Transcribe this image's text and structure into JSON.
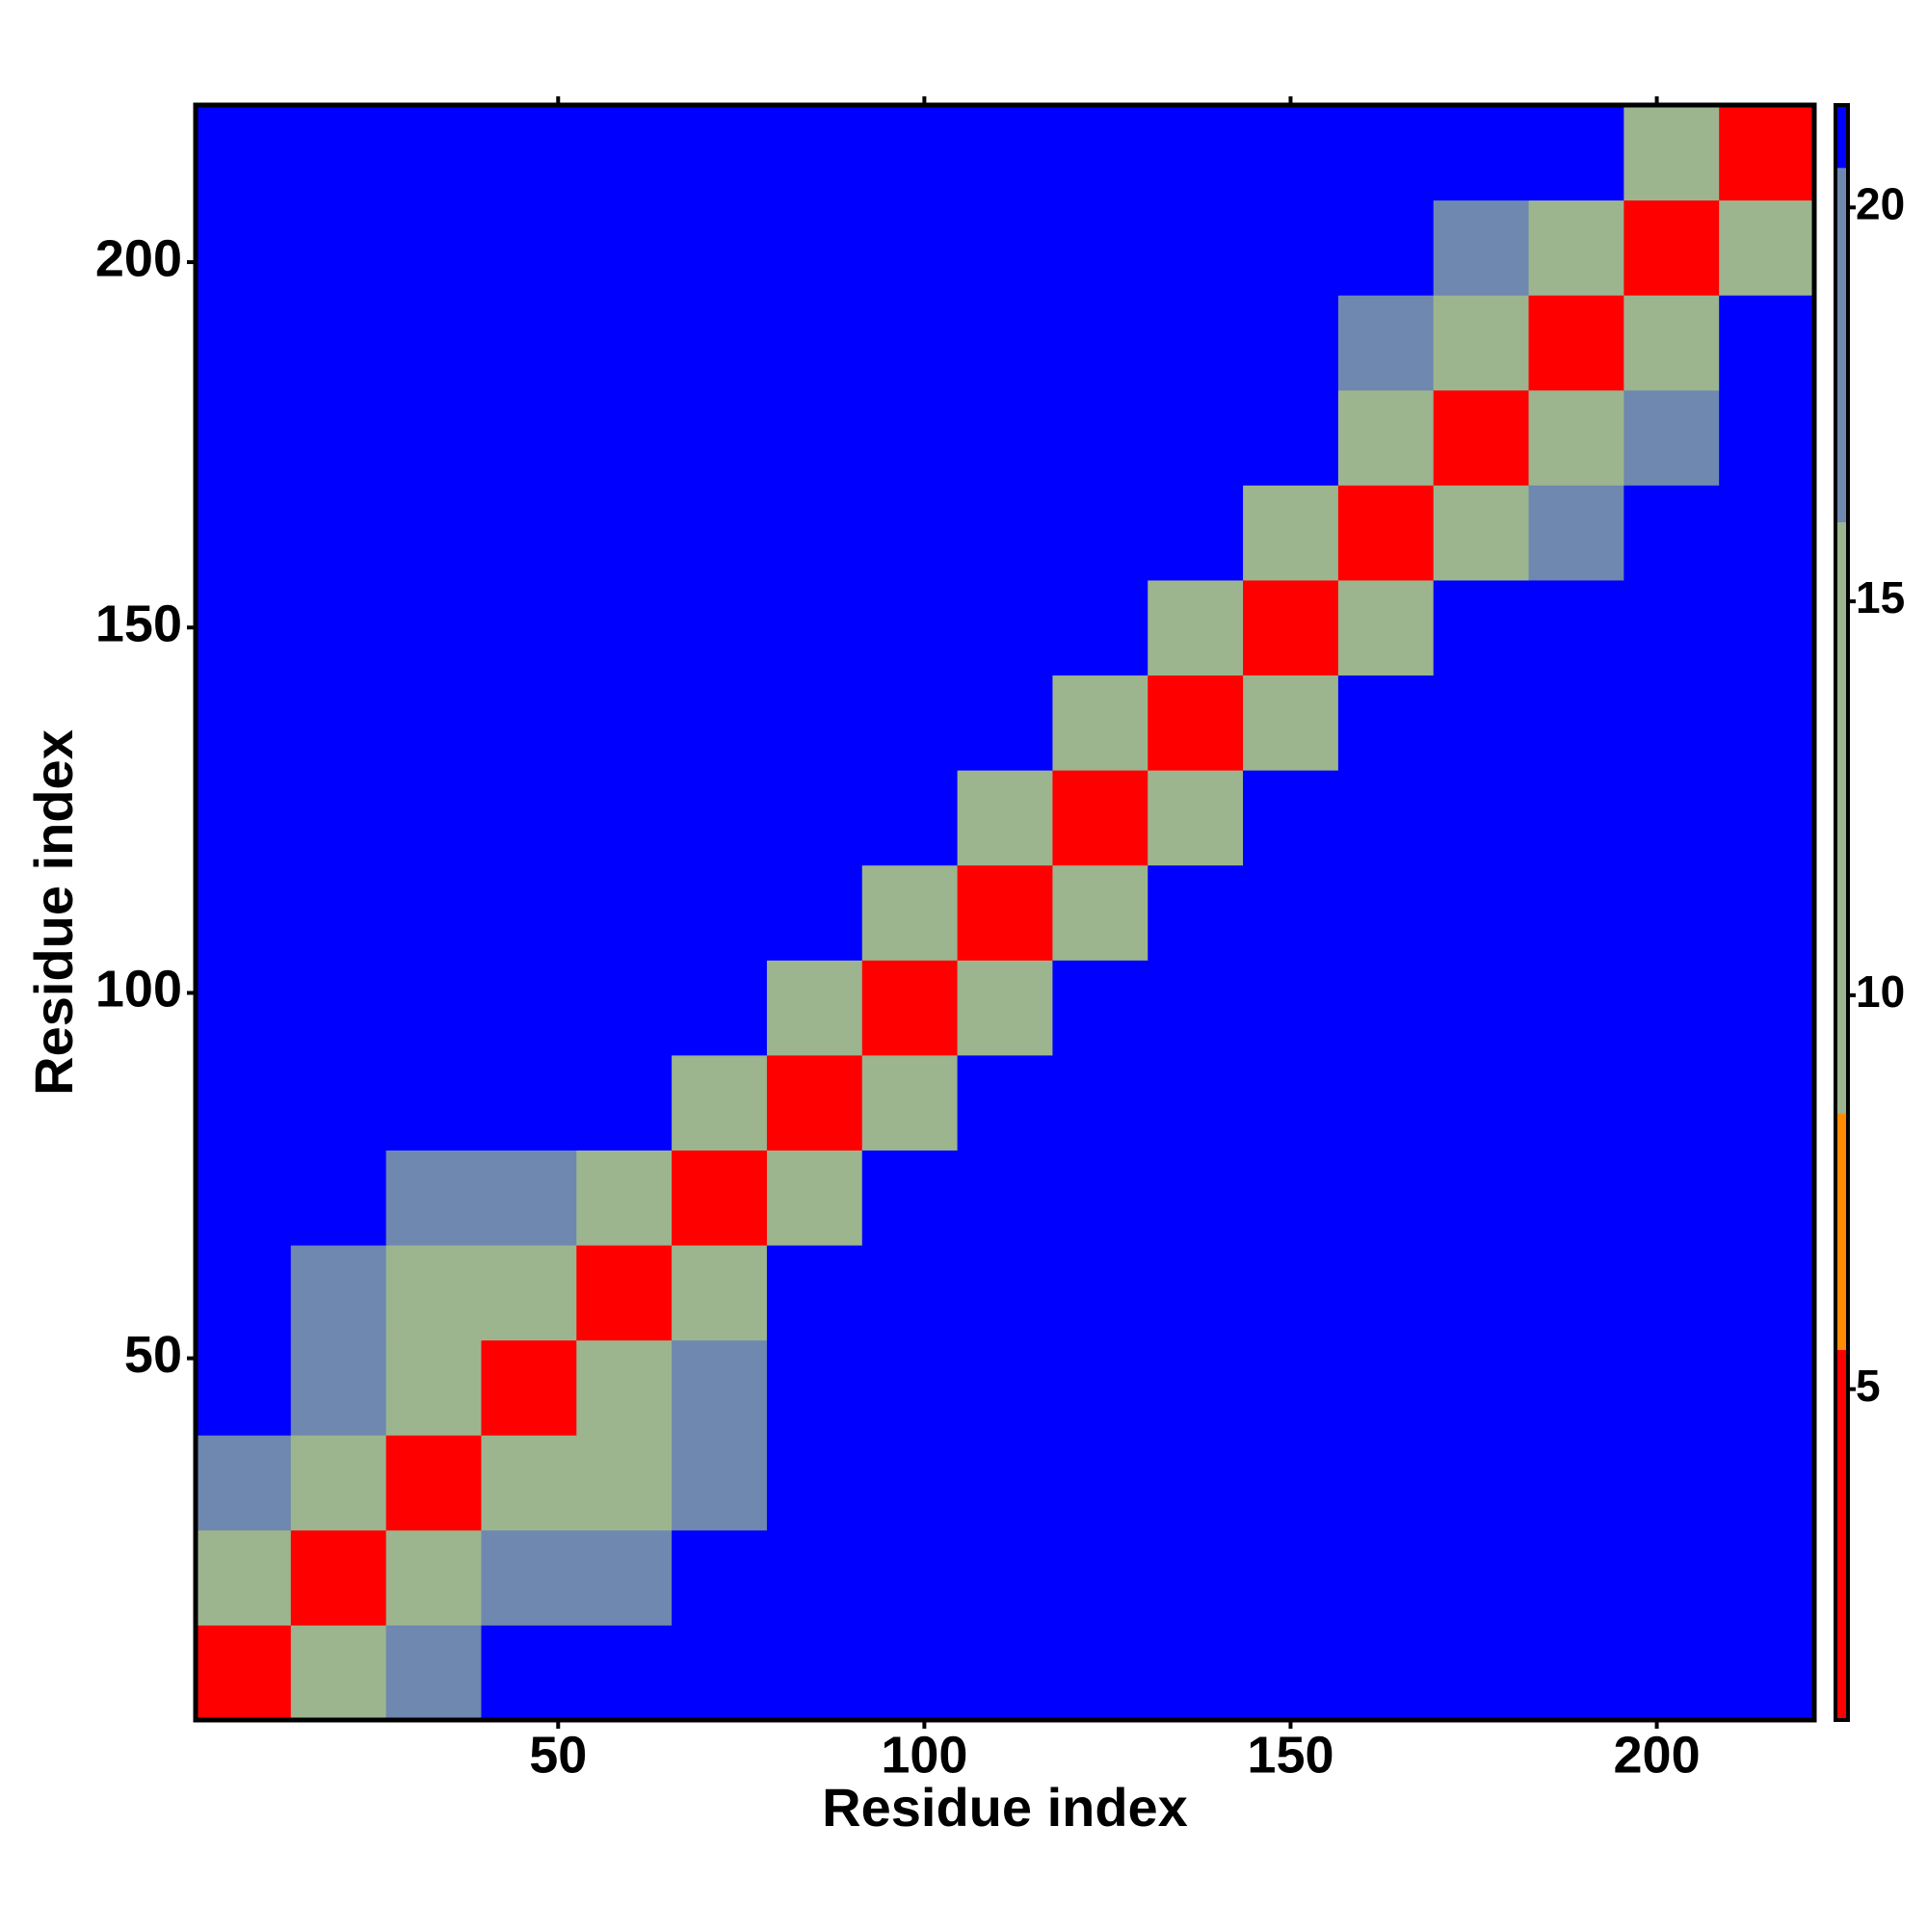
{
  "chart_data": {
    "type": "heatmap",
    "xlabel": "Residue index",
    "ylabel": "Residue index",
    "xlim": [
      0.5,
      221.5
    ],
    "ylim": [
      0.5,
      221.5
    ],
    "xticks": [
      50,
      100,
      150,
      200
    ],
    "yticks": [
      50,
      100,
      150,
      200
    ],
    "x_bins": [
      0.5,
      13.5,
      26.5,
      39.5,
      52.5,
      65.5,
      78.5,
      91.5,
      104.5,
      117.5,
      130.5,
      143.5,
      156.5,
      169.5,
      182.5,
      195.5,
      208.5,
      221.5
    ],
    "y_bins": [
      0.5,
      13.5,
      26.5,
      39.5,
      52.5,
      65.5,
      78.5,
      91.5,
      104.5,
      117.5,
      130.5,
      143.5,
      156.5,
      169.5,
      182.5,
      195.5,
      208.5,
      221.5
    ],
    "values": [
      [
        3,
        10,
        17,
        21,
        21,
        21,
        21,
        21,
        21,
        21,
        21,
        21,
        21,
        21,
        21,
        21,
        21
      ],
      [
        10,
        3,
        11,
        17,
        17,
        21,
        21,
        21,
        21,
        21,
        21,
        21,
        21,
        21,
        21,
        21,
        21
      ],
      [
        17,
        11,
        3,
        10,
        14,
        17,
        21,
        21,
        21,
        21,
        21,
        21,
        21,
        21,
        21,
        21,
        21
      ],
      [
        21,
        17,
        10,
        3,
        10,
        16,
        21,
        21,
        21,
        21,
        21,
        21,
        21,
        21,
        21,
        21,
        21
      ],
      [
        21,
        17,
        14,
        10,
        3,
        10,
        21,
        21,
        21,
        21,
        21,
        21,
        21,
        21,
        21,
        21,
        21
      ],
      [
        21,
        21,
        17,
        16,
        10,
        3,
        11,
        21,
        21,
        21,
        21,
        21,
        21,
        21,
        21,
        21,
        21
      ],
      [
        21,
        21,
        21,
        21,
        21,
        11,
        3,
        12,
        21,
        21,
        21,
        21,
        21,
        21,
        21,
        21,
        21
      ],
      [
        21,
        21,
        21,
        21,
        21,
        21,
        12,
        3,
        10,
        21,
        21,
        21,
        21,
        21,
        21,
        21,
        21
      ],
      [
        21,
        21,
        21,
        21,
        21,
        21,
        21,
        10,
        3,
        12,
        21,
        21,
        21,
        21,
        21,
        21,
        21
      ],
      [
        21,
        21,
        21,
        21,
        21,
        21,
        21,
        21,
        12,
        3,
        15,
        21,
        21,
        21,
        21,
        21,
        21
      ],
      [
        21,
        21,
        21,
        21,
        21,
        21,
        21,
        21,
        21,
        15,
        3,
        14,
        21,
        21,
        21,
        21,
        21
      ],
      [
        21,
        21,
        21,
        21,
        21,
        21,
        21,
        21,
        21,
        21,
        14,
        3,
        14,
        21,
        21,
        21,
        21
      ],
      [
        21,
        21,
        21,
        21,
        21,
        21,
        21,
        21,
        21,
        21,
        21,
        14,
        3,
        11,
        17,
        21,
        21
      ],
      [
        21,
        21,
        21,
        21,
        21,
        21,
        21,
        21,
        21,
        21,
        21,
        21,
        11,
        3,
        9,
        17,
        21
      ],
      [
        21,
        21,
        21,
        21,
        21,
        21,
        21,
        21,
        21,
        21,
        21,
        21,
        17,
        9,
        3,
        11,
        21
      ],
      [
        21,
        21,
        21,
        21,
        21,
        21,
        21,
        21,
        21,
        21,
        21,
        21,
        21,
        17,
        11,
        3,
        14
      ],
      [
        21,
        21,
        21,
        21,
        21,
        21,
        21,
        21,
        21,
        21,
        21,
        21,
        21,
        21,
        21,
        14,
        3
      ]
    ],
    "colorbar": {
      "lim": [
        0.8,
        21.3
      ],
      "ticks": [
        5,
        10,
        15,
        20
      ],
      "scale": [
        [
          0.8,
          "#ff0000"
        ],
        [
          5.5,
          "#ff8c00"
        ],
        [
          8.5,
          "#9db58f"
        ],
        [
          16,
          "#6e88b0"
        ],
        [
          20.5,
          "#0000ff"
        ]
      ]
    }
  }
}
